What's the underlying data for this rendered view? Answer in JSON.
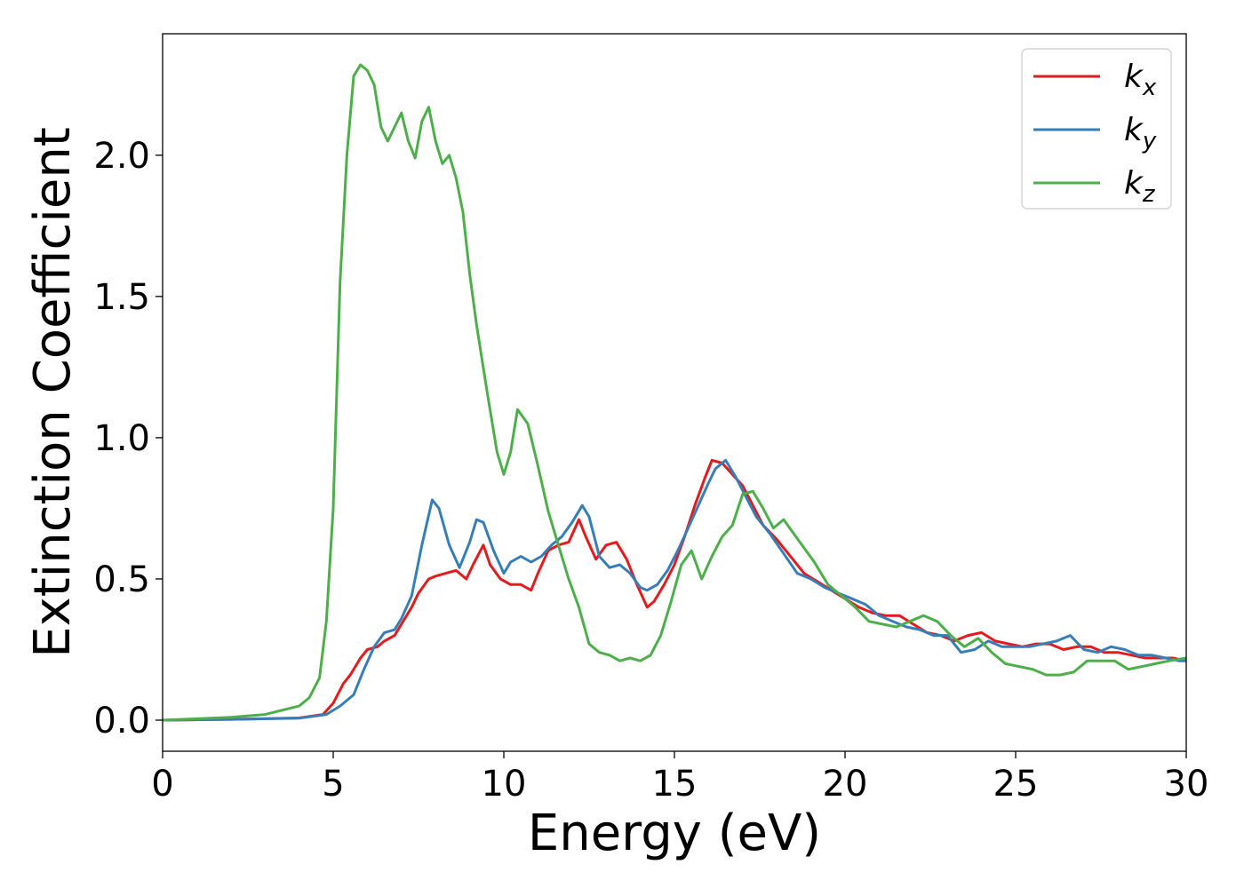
{
  "chart_data": {
    "type": "line",
    "title": "",
    "xlabel": "Energy (eV)",
    "ylabel": "Extinction Coefficient",
    "xlim": [
      0,
      30
    ],
    "ylim": [
      -0.11,
      2.43
    ],
    "xticks": [
      0,
      5,
      10,
      15,
      20,
      25,
      30
    ],
    "xtick_labels": [
      "0",
      "5",
      "10",
      "15",
      "20",
      "25",
      "30"
    ],
    "yticks": [
      0.0,
      0.5,
      1.0,
      1.5,
      2.0
    ],
    "ytick_labels": [
      "0.0",
      "0.5",
      "1.0",
      "1.5",
      "2.0"
    ],
    "grid": false,
    "legend_position": "top-right",
    "series": [
      {
        "name": "k",
        "subscript": "x",
        "color": "#e41a1c",
        "x": [
          0,
          2,
          4,
          4.7,
          5.0,
          5.3,
          5.5,
          5.8,
          6.0,
          6.3,
          6.5,
          6.8,
          7.0,
          7.3,
          7.5,
          7.8,
          8.0,
          8.3,
          8.6,
          8.9,
          9.1,
          9.4,
          9.6,
          9.9,
          10.2,
          10.5,
          10.8,
          11.0,
          11.3,
          11.6,
          11.9,
          12.2,
          12.4,
          12.7,
          13.0,
          13.3,
          13.6,
          13.9,
          14.2,
          14.4,
          14.7,
          15.0,
          15.3,
          15.6,
          15.9,
          16.1,
          16.4,
          16.7,
          17.0,
          17.3,
          17.6,
          18.0,
          18.4,
          18.8,
          19.2,
          19.6,
          20.0,
          20.4,
          20.8,
          21.2,
          21.6,
          22.0,
          22.4,
          22.8,
          23.2,
          23.6,
          24.0,
          24.4,
          24.8,
          25.2,
          25.6,
          26.0,
          26.4,
          26.8,
          27.2,
          27.6,
          28.0,
          28.4,
          28.8,
          29.2,
          29.6,
          30.0
        ],
        "y": [
          0.0,
          0.003,
          0.008,
          0.02,
          0.06,
          0.13,
          0.16,
          0.22,
          0.25,
          0.26,
          0.28,
          0.3,
          0.34,
          0.4,
          0.45,
          0.5,
          0.51,
          0.52,
          0.53,
          0.5,
          0.55,
          0.62,
          0.55,
          0.5,
          0.48,
          0.48,
          0.46,
          0.52,
          0.6,
          0.62,
          0.63,
          0.71,
          0.65,
          0.57,
          0.62,
          0.63,
          0.57,
          0.48,
          0.4,
          0.42,
          0.48,
          0.55,
          0.65,
          0.76,
          0.86,
          0.92,
          0.91,
          0.87,
          0.83,
          0.76,
          0.69,
          0.64,
          0.58,
          0.52,
          0.49,
          0.46,
          0.43,
          0.4,
          0.38,
          0.37,
          0.37,
          0.34,
          0.31,
          0.3,
          0.28,
          0.3,
          0.31,
          0.28,
          0.27,
          0.26,
          0.27,
          0.27,
          0.25,
          0.26,
          0.26,
          0.24,
          0.24,
          0.23,
          0.22,
          0.22,
          0.22,
          0.21
        ]
      },
      {
        "name": "k",
        "subscript": "y",
        "color": "#377eb8",
        "x": [
          0,
          2,
          4,
          4.8,
          5.2,
          5.6,
          5.9,
          6.2,
          6.5,
          6.8,
          7.0,
          7.3,
          7.6,
          7.9,
          8.1,
          8.4,
          8.7,
          9.0,
          9.2,
          9.4,
          9.7,
          10.0,
          10.2,
          10.5,
          10.8,
          11.1,
          11.4,
          11.7,
          12.0,
          12.3,
          12.5,
          12.8,
          13.1,
          13.4,
          13.7,
          14.0,
          14.2,
          14.5,
          14.8,
          15.1,
          15.4,
          15.7,
          16.0,
          16.2,
          16.5,
          16.8,
          17.1,
          17.4,
          17.8,
          18.2,
          18.6,
          19.0,
          19.4,
          19.8,
          20.2,
          20.6,
          21.0,
          21.4,
          21.8,
          22.2,
          22.6,
          23.0,
          23.4,
          23.8,
          24.2,
          24.6,
          25.0,
          25.4,
          25.8,
          26.2,
          26.6,
          27.0,
          27.4,
          27.8,
          28.2,
          28.6,
          29.0,
          29.4,
          29.8,
          30.0
        ],
        "y": [
          0.0,
          0.003,
          0.007,
          0.02,
          0.05,
          0.09,
          0.18,
          0.26,
          0.31,
          0.32,
          0.36,
          0.44,
          0.62,
          0.78,
          0.75,
          0.62,
          0.54,
          0.63,
          0.71,
          0.7,
          0.6,
          0.52,
          0.56,
          0.58,
          0.56,
          0.58,
          0.62,
          0.65,
          0.7,
          0.76,
          0.72,
          0.58,
          0.54,
          0.55,
          0.52,
          0.47,
          0.46,
          0.48,
          0.53,
          0.6,
          0.68,
          0.76,
          0.84,
          0.89,
          0.92,
          0.86,
          0.79,
          0.72,
          0.66,
          0.59,
          0.52,
          0.5,
          0.47,
          0.45,
          0.43,
          0.41,
          0.37,
          0.35,
          0.33,
          0.32,
          0.3,
          0.3,
          0.24,
          0.25,
          0.28,
          0.26,
          0.26,
          0.26,
          0.27,
          0.28,
          0.3,
          0.25,
          0.24,
          0.26,
          0.25,
          0.23,
          0.23,
          0.22,
          0.21,
          0.21
        ]
      },
      {
        "name": "k",
        "subscript": "z",
        "color": "#4daf4a",
        "x": [
          0,
          2,
          3,
          4,
          4.3,
          4.6,
          4.8,
          5.0,
          5.2,
          5.4,
          5.6,
          5.8,
          6.0,
          6.2,
          6.4,
          6.6,
          6.8,
          7.0,
          7.2,
          7.4,
          7.6,
          7.8,
          8.0,
          8.2,
          8.4,
          8.6,
          8.8,
          9.0,
          9.2,
          9.5,
          9.8,
          10.0,
          10.2,
          10.4,
          10.7,
          11.0,
          11.3,
          11.6,
          11.9,
          12.2,
          12.5,
          12.8,
          13.1,
          13.4,
          13.7,
          14.0,
          14.3,
          14.6,
          14.9,
          15.2,
          15.5,
          15.8,
          16.1,
          16.4,
          16.7,
          17.0,
          17.3,
          17.6,
          17.9,
          18.2,
          18.5,
          18.8,
          19.1,
          19.5,
          19.9,
          20.3,
          20.7,
          21.1,
          21.5,
          21.9,
          22.3,
          22.7,
          23.1,
          23.5,
          23.9,
          24.3,
          24.7,
          25.1,
          25.5,
          25.9,
          26.3,
          26.7,
          27.1,
          27.5,
          27.9,
          28.3,
          28.7,
          29.1,
          29.5,
          30.0
        ],
        "y": [
          0.0,
          0.01,
          0.02,
          0.05,
          0.08,
          0.15,
          0.35,
          0.75,
          1.55,
          2.0,
          2.28,
          2.32,
          2.3,
          2.25,
          2.1,
          2.05,
          2.1,
          2.15,
          2.05,
          1.99,
          2.12,
          2.17,
          2.05,
          1.97,
          2.0,
          1.92,
          1.8,
          1.58,
          1.4,
          1.17,
          0.95,
          0.87,
          0.95,
          1.1,
          1.05,
          0.9,
          0.74,
          0.62,
          0.5,
          0.4,
          0.27,
          0.24,
          0.23,
          0.21,
          0.22,
          0.21,
          0.23,
          0.3,
          0.42,
          0.55,
          0.6,
          0.5,
          0.58,
          0.65,
          0.69,
          0.8,
          0.81,
          0.75,
          0.68,
          0.71,
          0.66,
          0.61,
          0.56,
          0.48,
          0.44,
          0.4,
          0.35,
          0.34,
          0.33,
          0.35,
          0.37,
          0.35,
          0.3,
          0.26,
          0.29,
          0.24,
          0.2,
          0.19,
          0.18,
          0.16,
          0.16,
          0.17,
          0.21,
          0.21,
          0.21,
          0.18,
          0.19,
          0.2,
          0.21,
          0.22
        ]
      }
    ]
  }
}
